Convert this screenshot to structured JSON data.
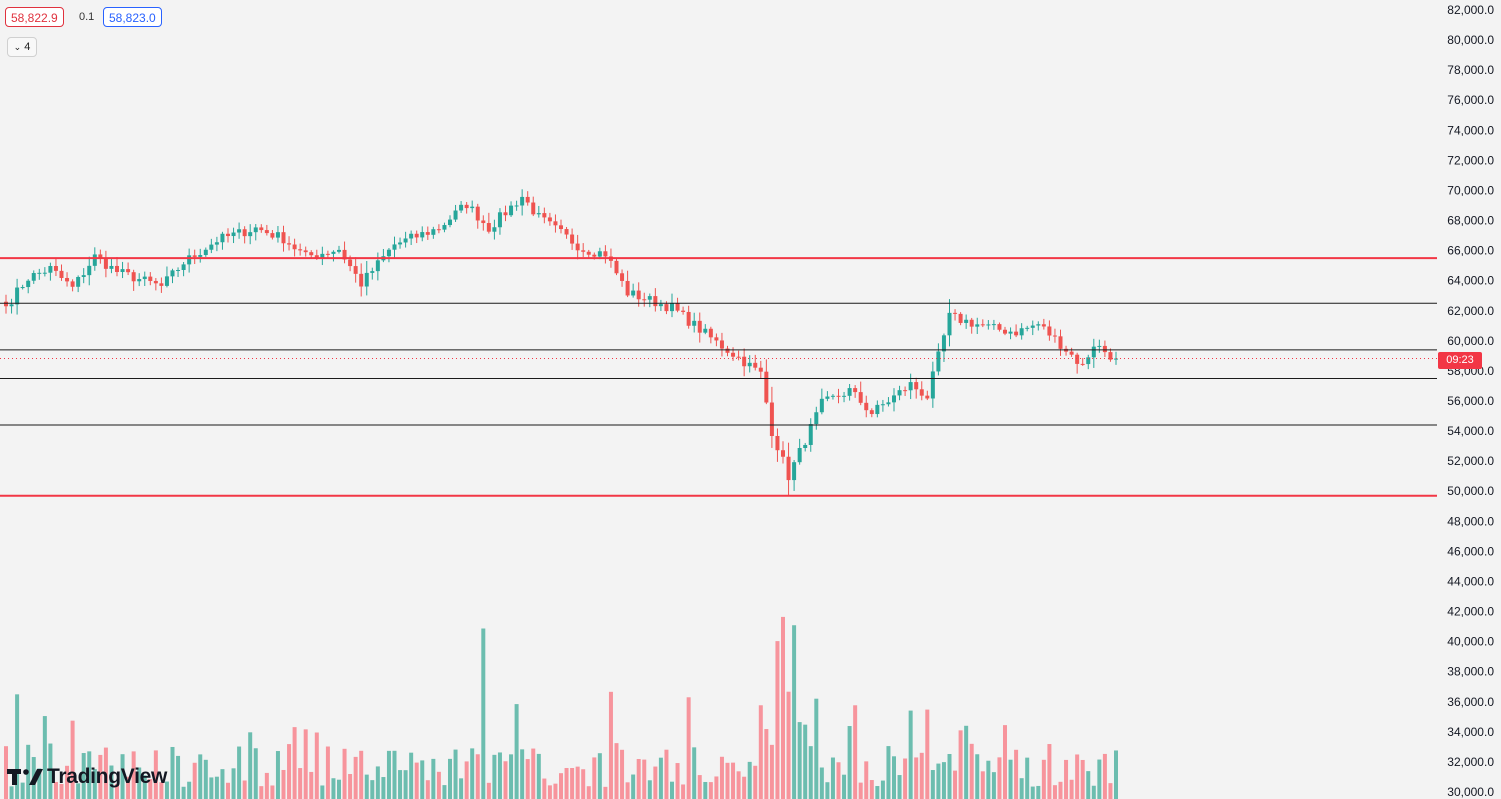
{
  "header": {
    "bid": "58,822.9",
    "spread": "0.1",
    "ask": "58,823.0",
    "indicator_count": "4"
  },
  "countdown": "09:23",
  "logo_text": "TradingView",
  "colors": {
    "up": "#26a69a",
    "down": "#ef5350",
    "up_volume": "#6cbdaf",
    "down_volume": "#f7949c",
    "resistance_line": "#f23645",
    "level_line": "#1a1a1a",
    "last_price_line": "#f23645",
    "background": "#f3f3f3"
  },
  "chart_data": {
    "type": "candlestick",
    "y_axis": {
      "labels": [
        "82,000.0",
        "80,000.0",
        "78,000.0",
        "76,000.0",
        "74,000.0",
        "72,000.0",
        "70,000.0",
        "68,000.0",
        "66,000.0",
        "64,000.0",
        "62,000.0",
        "60,000.0",
        "58,000.0",
        "56,000.0",
        "54,000.0",
        "52,000.0",
        "50,000.0",
        "48,000.0",
        "46,000.0",
        "44,000.0",
        "42,000.0",
        "40,000.0",
        "38,000.0",
        "36,000.0",
        "34,000.0",
        "32,000.0",
        "30,000.0"
      ],
      "range": [
        30000,
        82000
      ],
      "position": "right"
    },
    "last_price": 58823,
    "horizontal_levels": [
      {
        "price": 65500,
        "style": "red"
      },
      {
        "price": 49700,
        "style": "red"
      },
      {
        "price": 62500,
        "style": "black"
      },
      {
        "price": 59400,
        "style": "black"
      },
      {
        "price": 57500,
        "style": "black"
      },
      {
        "price": 54400,
        "style": "black"
      }
    ],
    "waypoints": [
      [
        0,
        62300
      ],
      [
        4,
        64200
      ],
      [
        8,
        64800
      ],
      [
        12,
        63500
      ],
      [
        16,
        65600
      ],
      [
        20,
        64600
      ],
      [
        28,
        63600
      ],
      [
        32,
        65200
      ],
      [
        38,
        66700
      ],
      [
        45,
        67500
      ],
      [
        50,
        66800
      ],
      [
        54,
        65600
      ],
      [
        60,
        66100
      ],
      [
        64,
        63800
      ],
      [
        70,
        66400
      ],
      [
        78,
        67500
      ],
      [
        83,
        69100
      ],
      [
        87,
        67500
      ],
      [
        93,
        69600
      ],
      [
        96,
        68200
      ],
      [
        104,
        66100
      ],
      [
        108,
        65800
      ],
      [
        112,
        63200
      ],
      [
        120,
        62200
      ],
      [
        128,
        59900
      ],
      [
        132,
        58900
      ],
      [
        136,
        57800
      ],
      [
        138,
        54000
      ],
      [
        141,
        51000
      ],
      [
        147,
        55800
      ],
      [
        152,
        56700
      ],
      [
        156,
        55200
      ],
      [
        163,
        57100
      ],
      [
        166,
        56300
      ],
      [
        170,
        61600
      ],
      [
        178,
        60800
      ],
      [
        182,
        60600
      ],
      [
        186,
        61100
      ],
      [
        190,
        59800
      ],
      [
        194,
        58300
      ],
      [
        196,
        59800
      ],
      [
        200,
        58800
      ]
    ],
    "volume_peaks": [
      {
        "index": 86,
        "label": "up"
      },
      {
        "index": 139,
        "label": "down"
      },
      {
        "index": 140,
        "label": "down"
      },
      {
        "index": 142,
        "label": "up"
      }
    ],
    "candle_count": 201,
    "grid": false,
    "legend": "none"
  }
}
